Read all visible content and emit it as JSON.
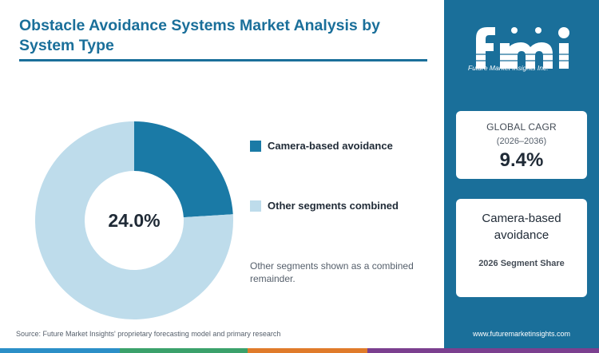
{
  "page": {
    "title": "Obstacle Avoidance Systems Market Analysis by System Type",
    "source": "Source: Future Market Insights' proprietary forecasting model and primary research",
    "note": "Other segments shown as a combined remainder.",
    "website": "www.futuremarketinsights.com"
  },
  "logo": {
    "letters": "fmi",
    "tagline": "Future Market Insights Inc."
  },
  "cagr_card": {
    "title": "GLOBAL CAGR",
    "period": "(2026–2036)",
    "value": "9.4%"
  },
  "share_card": {
    "segment": "Camera-based avoidance",
    "subtitle": "2026 Segment Share"
  },
  "chart_data": {
    "type": "pie",
    "variant": "donut",
    "center_label": "24.0%",
    "slices": [
      {
        "label": "Camera-based avoidance",
        "value": 24.0,
        "color": "#1a7aa6"
      },
      {
        "label": "Other segments combined",
        "value": 76.0,
        "color": "#bedceb"
      }
    ],
    "legend_position": "right"
  },
  "colors": {
    "brand": "#1a6f9a",
    "bottom_bar": [
      "#2b8fc7",
      "#3ba16b",
      "#e07b2a",
      "#7b3f8f"
    ]
  }
}
